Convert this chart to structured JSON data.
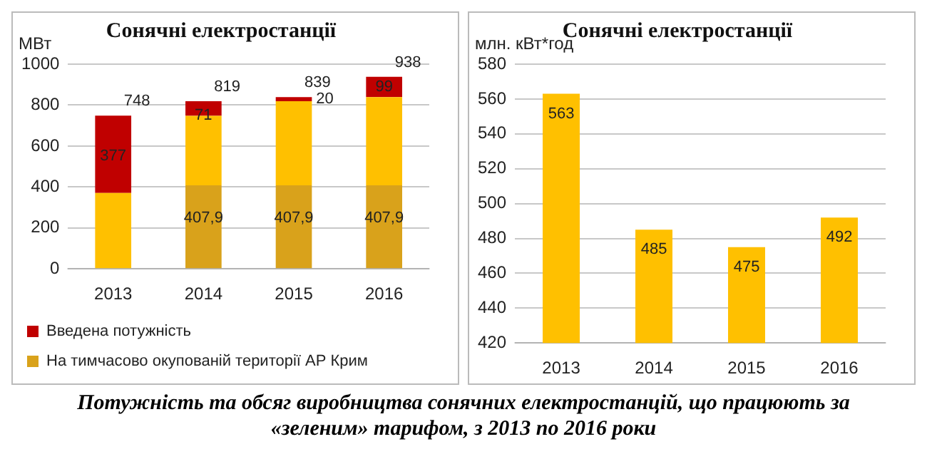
{
  "chart_data": [
    {
      "type": "bar",
      "title": "Сонячні електростанції",
      "ylabel": "МВт",
      "categories": [
        "2013",
        "2014",
        "2015",
        "2016"
      ],
      "stacked": true,
      "series": [
        {
          "name": "На тимчасово окупованій території АР Крим",
          "color": "#d9a21b",
          "values": [
            null,
            407.9,
            407.9,
            407.9
          ],
          "value_labels": [
            null,
            "407,9",
            "407,9",
            "407,9"
          ]
        },
        {
          "color": "#ffc000",
          "values": [
            371,
            340,
            411,
            431
          ]
        },
        {
          "name": "Введена потужність",
          "color": "#c00000",
          "values": [
            377,
            71,
            20,
            99
          ],
          "value_labels": [
            "377",
            "71",
            "20",
            "99"
          ]
        }
      ],
      "totals": [
        "748",
        "819",
        "839",
        "938"
      ],
      "ylim": [
        0,
        1000
      ],
      "yticks": [
        0,
        200,
        400,
        600,
        800,
        1000
      ],
      "grid": "y",
      "legend": "bottom",
      "annotations": [
        "Потужність та обсяг виробництва сонячних електростанцій, що працюють за «зеленим» тарифом, з 2013 по 2016 роки"
      ]
    },
    {
      "type": "bar",
      "title": "Сонячні електростанції",
      "ylabel": "млн. кВт*год",
      "categories": [
        "2013",
        "2014",
        "2015",
        "2016"
      ],
      "values": [
        563,
        485,
        475,
        492
      ],
      "color": "#ffc000",
      "data_labels": true,
      "ylim": [
        420,
        580
      ],
      "yticks": [
        420,
        440,
        460,
        480,
        500,
        520,
        540,
        560,
        580
      ],
      "grid": "y",
      "legend": false
    }
  ]
}
